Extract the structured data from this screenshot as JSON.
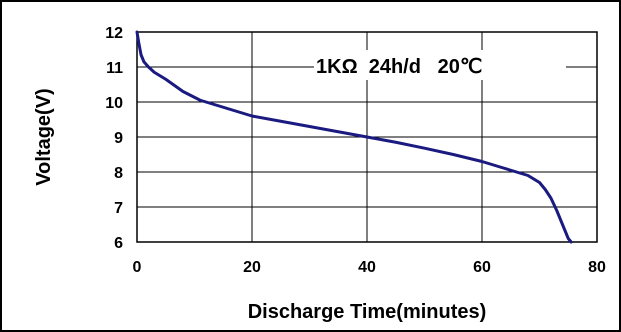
{
  "chart_data": {
    "type": "line",
    "title": "",
    "xlabel": "Discharge Time(minutes)",
    "ylabel": "Voltage(V)",
    "xlim": [
      0,
      80
    ],
    "ylim": [
      6,
      12
    ],
    "x_ticks": [
      "0",
      "20",
      "40",
      "60",
      "80"
    ],
    "y_ticks": [
      "6",
      "7",
      "8",
      "9",
      "10",
      "11",
      "12"
    ],
    "grid": true,
    "legend": "none",
    "annotation": "1KΩ  24h/d   20℃",
    "line_color": "#1a1a80",
    "series": [
      {
        "x": [
          0,
          0.3,
          0.7,
          1.2,
          2,
          3,
          5,
          8,
          11,
          15,
          20,
          25,
          30,
          35,
          40,
          45,
          50,
          55,
          60,
          63,
          66,
          68,
          70,
          71,
          72,
          73,
          74,
          75,
          75.5
        ],
        "y": [
          12.0,
          11.7,
          11.35,
          11.15,
          11.0,
          10.85,
          10.65,
          10.3,
          10.05,
          9.85,
          9.6,
          9.45,
          9.3,
          9.15,
          9.0,
          8.85,
          8.68,
          8.5,
          8.3,
          8.15,
          8.0,
          7.9,
          7.7,
          7.5,
          7.25,
          6.9,
          6.5,
          6.1,
          6.0
        ]
      }
    ]
  }
}
